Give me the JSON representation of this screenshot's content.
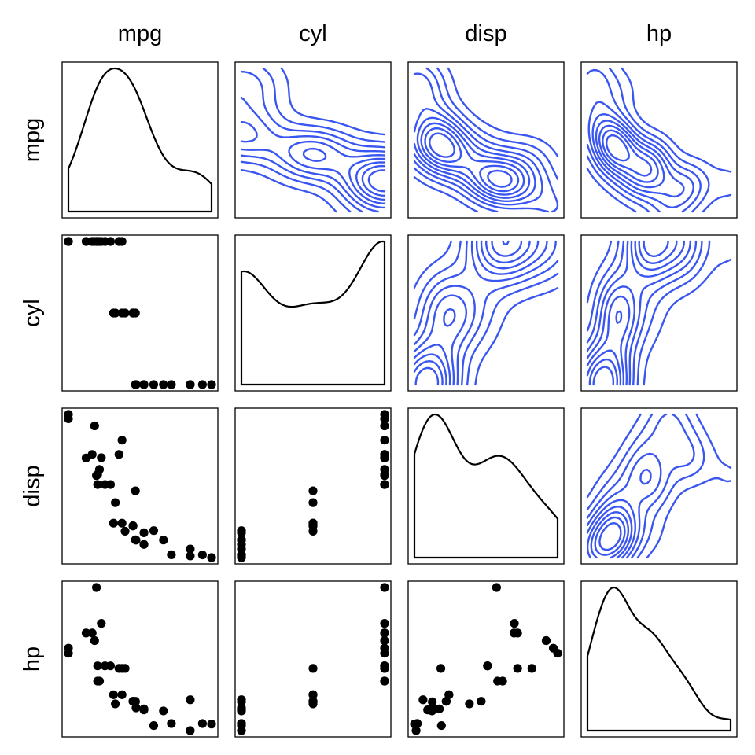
{
  "chart_data": {
    "type": "scatter-matrix",
    "variables": [
      "mpg",
      "cyl",
      "disp",
      "hp"
    ],
    "lower_panels": "scatter",
    "diagonal_panels": "density",
    "upper_panels": "2d-density-contours",
    "colors": {
      "points": "#000000",
      "density": "#000000",
      "contours": "#3a56f0",
      "frame": "#000000"
    },
    "data": {
      "mpg": [
        21.0,
        21.0,
        22.8,
        21.4,
        18.7,
        18.1,
        14.3,
        24.4,
        22.8,
        19.2,
        17.8,
        16.4,
        17.3,
        15.2,
        10.4,
        10.4,
        14.7,
        32.4,
        30.4,
        33.9,
        21.5,
        15.5,
        15.2,
        13.3,
        19.2,
        27.3,
        26.0,
        30.4,
        15.8,
        19.7,
        15.0,
        21.4
      ],
      "cyl": [
        6,
        6,
        4,
        6,
        8,
        6,
        8,
        4,
        4,
        6,
        6,
        8,
        8,
        8,
        8,
        8,
        8,
        4,
        4,
        4,
        4,
        8,
        8,
        8,
        8,
        4,
        4,
        4,
        8,
        6,
        8,
        4
      ],
      "disp": [
        160,
        160,
        108,
        258,
        360,
        225,
        360,
        146.7,
        140.8,
        167.6,
        167.6,
        275.8,
        275.8,
        275.8,
        472,
        460,
        440,
        78.7,
        75.7,
        71.1,
        120.1,
        318,
        304,
        350,
        400,
        79,
        120.3,
        95.1,
        351,
        145,
        301,
        121
      ],
      "hp": [
        110,
        110,
        93,
        110,
        175,
        105,
        245,
        62,
        95,
        123,
        123,
        180,
        180,
        180,
        205,
        215,
        230,
        66,
        52,
        65,
        97,
        150,
        150,
        245,
        175,
        66,
        91,
        113,
        264,
        175,
        335,
        109
      ]
    }
  }
}
